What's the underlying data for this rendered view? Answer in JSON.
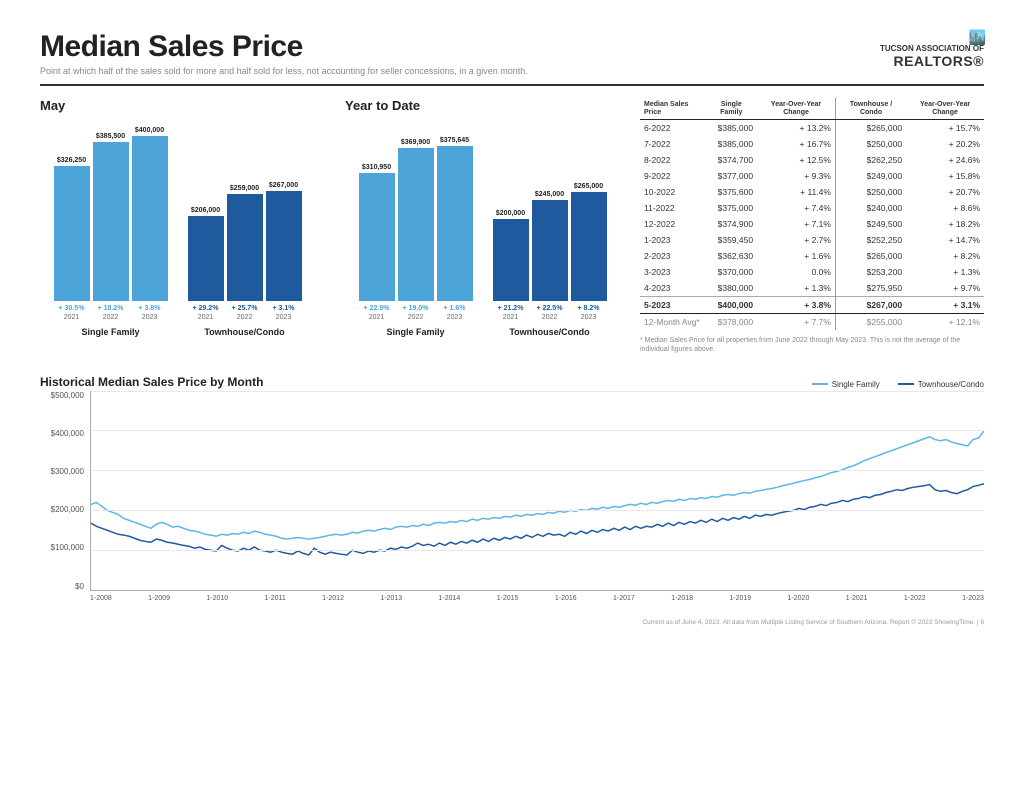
{
  "header": {
    "title": "Median Sales Price",
    "subtitle": "Point at which half of the sales sold for more and half sold for less, not accounting for seller concessions, in a given month.",
    "logo_line1": "TUCSON ASSOCIATION OF",
    "logo_line2": "REALTORS®"
  },
  "colors": {
    "bar_light": "#4ca4d8",
    "bar_dark": "#1f5a9e",
    "pct_light": "#4ca4d8",
    "pct_dark": "#1f5a9e",
    "grid": "#e8e8e8",
    "line_sf": "#5bb5e8",
    "line_tc": "#1f5a9e"
  },
  "bar_panels": [
    {
      "title": "May",
      "groups": [
        {
          "label": "Single Family",
          "color_key": "bar_light",
          "max_value": 400000,
          "bars": [
            {
              "year": "2021",
              "value": 326250,
              "label": "$326,250",
              "pct": "+ 30.5%"
            },
            {
              "year": "2022",
              "value": 385500,
              "label": "$385,500",
              "pct": "+ 18.2%"
            },
            {
              "year": "2023",
              "value": 400000,
              "label": "$400,000",
              "pct": "+ 3.8%"
            }
          ]
        },
        {
          "label": "Townhouse/Condo",
          "color_key": "bar_dark",
          "max_value": 400000,
          "bars": [
            {
              "year": "2021",
              "value": 206000,
              "label": "$206,000",
              "pct": "+ 29.2%"
            },
            {
              "year": "2022",
              "value": 259000,
              "label": "$259,000",
              "pct": "+ 25.7%"
            },
            {
              "year": "2023",
              "value": 267000,
              "label": "$267,000",
              "pct": "+ 3.1%"
            }
          ]
        }
      ]
    },
    {
      "title": "Year to Date",
      "groups": [
        {
          "label": "Single Family",
          "color_key": "bar_light",
          "max_value": 400000,
          "bars": [
            {
              "year": "2021",
              "value": 310950,
              "label": "$310,950",
              "pct": "+ 22.9%"
            },
            {
              "year": "2022",
              "value": 369900,
              "label": "$369,900",
              "pct": "+ 19.0%"
            },
            {
              "year": "2023",
              "value": 375645,
              "label": "$375,645",
              "pct": "+ 1.6%"
            }
          ]
        },
        {
          "label": "Townhouse/Condo",
          "color_key": "bar_dark",
          "max_value": 400000,
          "bars": [
            {
              "year": "2021",
              "value": 200000,
              "label": "$200,000",
              "pct": "+ 21.2%"
            },
            {
              "year": "2022",
              "value": 245000,
              "label": "$245,000",
              "pct": "+ 22.5%"
            },
            {
              "year": "2023",
              "value": 265000,
              "label": "$265,000",
              "pct": "+ 8.2%"
            }
          ]
        }
      ]
    }
  ],
  "table": {
    "headers": [
      "Median Sales Price",
      "Single Family",
      "Year-Over-Year Change",
      "Townhouse / Condo",
      "Year-Over-Year Change"
    ],
    "rows": [
      [
        "6-2022",
        "$385,000",
        "+ 13.2%",
        "$265,000",
        "+ 15.7%"
      ],
      [
        "7-2022",
        "$385,000",
        "+ 16.7%",
        "$250,000",
        "+ 20.2%"
      ],
      [
        "8-2022",
        "$374,700",
        "+ 12.5%",
        "$262,250",
        "+ 24.6%"
      ],
      [
        "9-2022",
        "$377,000",
        "+ 9.3%",
        "$249,000",
        "+ 15.8%"
      ],
      [
        "10-2022",
        "$375,600",
        "+ 11.4%",
        "$250,000",
        "+ 20.7%"
      ],
      [
        "11-2022",
        "$375,000",
        "+ 7.4%",
        "$240,000",
        "+ 8.6%"
      ],
      [
        "12-2022",
        "$374,900",
        "+ 7.1%",
        "$249,500",
        "+ 18.2%"
      ],
      [
        "1-2023",
        "$359,450",
        "+ 2.7%",
        "$252,250",
        "+ 14.7%"
      ],
      [
        "2-2023",
        "$362,630",
        "+ 1.6%",
        "$265,000",
        "+ 8.2%"
      ],
      [
        "3-2023",
        "$370,000",
        "0.0%",
        "$253,200",
        "+ 1.3%"
      ],
      [
        "4-2023",
        "$380,000",
        "+ 1.3%",
        "$275,950",
        "+ 9.7%"
      ]
    ],
    "highlight_row": [
      "5-2023",
      "$400,000",
      "+ 3.8%",
      "$267,000",
      "+ 3.1%"
    ],
    "avg_row": [
      "12-Month Avg*",
      "$378,000",
      "+ 7.7%",
      "$255,000",
      "+ 12.1%"
    ],
    "footnote": "* Median Sales Price for all properties from June 2022 through May 2023. This is not the average of the individual figures above."
  },
  "line_chart": {
    "title": "Historical Median Sales Price by Month",
    "legend": [
      {
        "label": "Single Family",
        "color_key": "line_sf"
      },
      {
        "label": "Townhouse/Condo",
        "color_key": "line_tc"
      }
    ],
    "y_ticks": [
      "$500,000",
      "$400,000",
      "$300,000",
      "$200,000",
      "$100,000",
      "$0"
    ],
    "y_max": 500000,
    "x_ticks": [
      "1-2008",
      "1-2009",
      "1-2010",
      "1-2011",
      "1-2012",
      "1-2013",
      "1-2014",
      "1-2015",
      "1-2016",
      "1-2017",
      "1-2018",
      "1-2019",
      "1-2020",
      "1-2021",
      "1-2022",
      "1-2023"
    ],
    "series": {
      "sf": [
        215000,
        220000,
        210000,
        200000,
        195000,
        190000,
        180000,
        175000,
        170000,
        165000,
        160000,
        155000,
        165000,
        170000,
        165000,
        158000,
        160000,
        155000,
        150000,
        148000,
        145000,
        140000,
        138000,
        135000,
        140000,
        138000,
        142000,
        140000,
        145000,
        142000,
        148000,
        145000,
        140000,
        138000,
        135000,
        130000,
        128000,
        130000,
        132000,
        130000,
        128000,
        130000,
        132000,
        135000,
        138000,
        140000,
        138000,
        140000,
        145000,
        143000,
        148000,
        150000,
        148000,
        152000,
        155000,
        152000,
        158000,
        160000,
        158000,
        162000,
        160000,
        165000,
        162000,
        168000,
        170000,
        168000,
        172000,
        170000,
        175000,
        172000,
        178000,
        175000,
        180000,
        178000,
        182000,
        180000,
        185000,
        183000,
        188000,
        185000,
        190000,
        188000,
        192000,
        190000,
        195000,
        193000,
        198000,
        195000,
        200000,
        198000,
        202000,
        200000,
        205000,
        203000,
        208000,
        205000,
        210000,
        208000,
        212000,
        215000,
        213000,
        218000,
        215000,
        220000,
        218000,
        222000,
        225000,
        223000,
        228000,
        225000,
        230000,
        228000,
        232000,
        230000,
        235000,
        233000,
        238000,
        240000,
        238000,
        242000,
        245000,
        243000,
        248000,
        250000,
        253000,
        255000,
        258000,
        262000,
        265000,
        268000,
        272000,
        275000,
        278000,
        282000,
        285000,
        290000,
        295000,
        298000,
        302000,
        308000,
        312000,
        318000,
        325000,
        330000,
        335000,
        340000,
        345000,
        350000,
        355000,
        360000,
        365000,
        370000,
        375000,
        380000,
        385000,
        378000,
        375000,
        378000,
        372000,
        368000,
        365000,
        362000,
        378000,
        382000,
        400000
      ],
      "tc": [
        168000,
        160000,
        155000,
        150000,
        145000,
        140000,
        138000,
        135000,
        130000,
        125000,
        122000,
        120000,
        128000,
        125000,
        120000,
        118000,
        115000,
        112000,
        110000,
        105000,
        108000,
        102000,
        100000,
        98000,
        112000,
        105000,
        100000,
        98000,
        105000,
        100000,
        108000,
        100000,
        98000,
        95000,
        100000,
        95000,
        92000,
        90000,
        98000,
        92000,
        88000,
        105000,
        95000,
        90000,
        95000,
        92000,
        90000,
        88000,
        100000,
        95000,
        92000,
        98000,
        95000,
        100000,
        98000,
        105000,
        102000,
        108000,
        105000,
        110000,
        118000,
        112000,
        115000,
        110000,
        118000,
        112000,
        120000,
        115000,
        122000,
        118000,
        125000,
        120000,
        128000,
        122000,
        130000,
        125000,
        132000,
        128000,
        135000,
        130000,
        138000,
        132000,
        140000,
        135000,
        142000,
        138000,
        140000,
        135000,
        145000,
        140000,
        148000,
        142000,
        150000,
        145000,
        152000,
        148000,
        155000,
        150000,
        158000,
        152000,
        160000,
        155000,
        160000,
        158000,
        165000,
        160000,
        168000,
        162000,
        170000,
        165000,
        172000,
        168000,
        175000,
        170000,
        178000,
        172000,
        180000,
        175000,
        182000,
        178000,
        185000,
        180000,
        188000,
        185000,
        190000,
        188000,
        192000,
        195000,
        198000,
        200000,
        205000,
        202000,
        208000,
        210000,
        215000,
        212000,
        218000,
        220000,
        225000,
        222000,
        228000,
        230000,
        235000,
        232000,
        238000,
        240000,
        245000,
        248000,
        252000,
        250000,
        255000,
        258000,
        260000,
        262000,
        265000,
        252000,
        248000,
        250000,
        245000,
        242000,
        248000,
        252000,
        260000,
        263000,
        267000
      ]
    }
  },
  "footer": "Current as of June 4, 2023. All data from Multiple Listing Service of Southern Arizona. Report © 2023 ShowingTime.  |  8"
}
